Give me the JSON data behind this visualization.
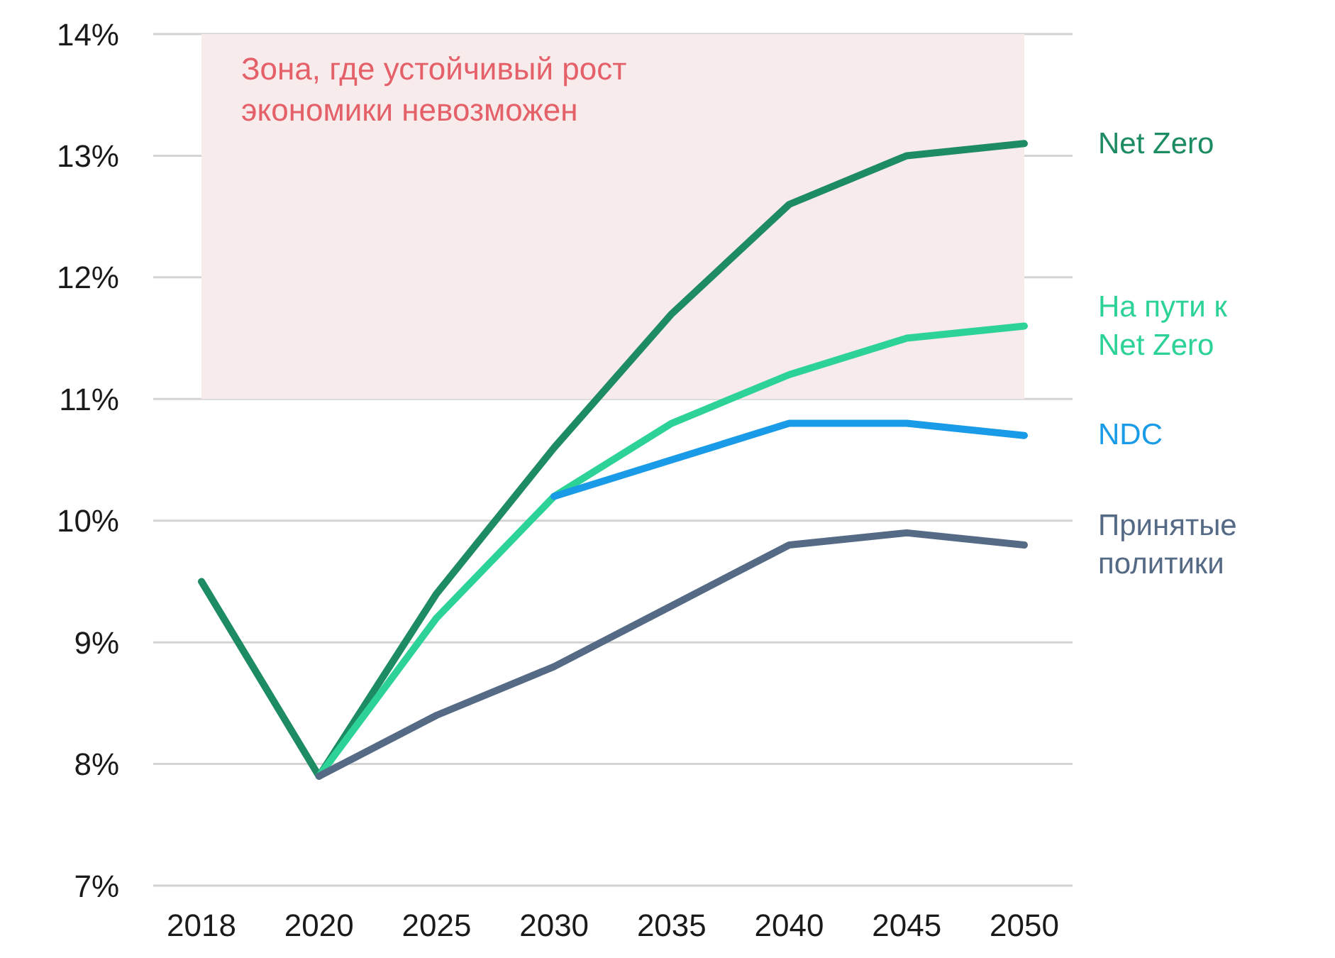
{
  "chart_data": {
    "type": "line",
    "categories": [
      "2018",
      "2020",
      "2025",
      "2030",
      "2035",
      "2040",
      "2045",
      "2050"
    ],
    "series": [
      {
        "name": "Net Zero",
        "color": "#1e8c63",
        "values": [
          9.5,
          7.9,
          9.4,
          10.6,
          11.7,
          12.6,
          13.0,
          13.1
        ]
      },
      {
        "name": "На пути к Net Zero",
        "color": "#2dd396",
        "values": [
          null,
          7.9,
          9.2,
          10.2,
          10.8,
          11.2,
          11.5,
          11.6
        ]
      },
      {
        "name": "NDC",
        "color": "#1a9be8",
        "values": [
          null,
          null,
          null,
          10.2,
          10.5,
          10.8,
          10.8,
          10.7
        ]
      },
      {
        "name": "Принятые политики",
        "color": "#556a85",
        "values": [
          null,
          7.9,
          8.4,
          8.8,
          9.3,
          9.8,
          9.9,
          9.8
        ]
      }
    ],
    "ylim": [
      7,
      14
    ],
    "yticks": [
      {
        "value": 7,
        "label": "7%"
      },
      {
        "value": 8,
        "label": "8%"
      },
      {
        "value": 9,
        "label": "9%"
      },
      {
        "value": 10,
        "label": "10%"
      },
      {
        "value": 11,
        "label": "11%"
      },
      {
        "value": 12,
        "label": "12%"
      },
      {
        "value": 13,
        "label": "13%"
      },
      {
        "value": 14,
        "label": "14%"
      }
    ],
    "bands": [
      {
        "axis": "y",
        "from": 11,
        "to": 14,
        "label": "Зона, где устойчивый рост экономики невозможен",
        "color": "#f8ebeb"
      }
    ],
    "grid": "y",
    "marker": "none",
    "line_style": "solid"
  }
}
